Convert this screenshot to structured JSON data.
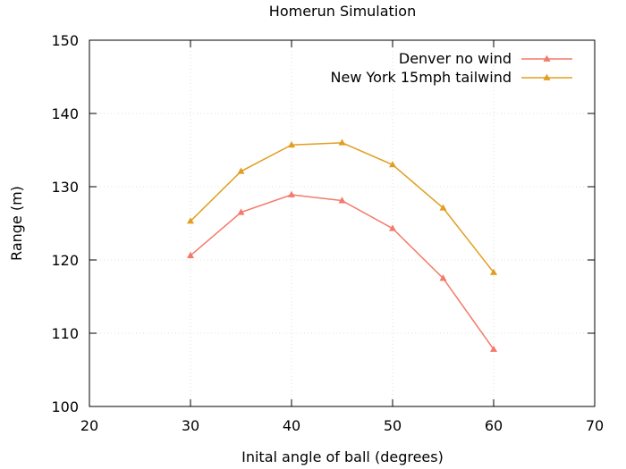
{
  "chart_data": {
    "type": "line",
    "title": "Homerun Simulation",
    "xlabel": "Inital angle of ball (degrees)",
    "ylabel": "Range (m)",
    "xlim": [
      20,
      70
    ],
    "ylim": [
      100,
      150
    ],
    "xticks": [
      "20",
      "30",
      "40",
      "50",
      "60",
      "70"
    ],
    "yticks": [
      "100",
      "110",
      "120",
      "130",
      "140",
      "150"
    ],
    "x": [
      30,
      35,
      40,
      45,
      50,
      55,
      60
    ],
    "grid": true,
    "legend_position": "top-right",
    "series": [
      {
        "name": "Denver no wind",
        "color": "#f4796b",
        "marker": "triangle",
        "values": [
          120.6,
          126.5,
          128.9,
          128.1,
          124.3,
          117.5,
          107.8
        ]
      },
      {
        "name": "New York 15mph tailwind",
        "color": "#e29e21",
        "marker": "triangle",
        "values": [
          125.3,
          132.1,
          135.7,
          136.0,
          133.0,
          127.1,
          118.3
        ]
      }
    ]
  }
}
